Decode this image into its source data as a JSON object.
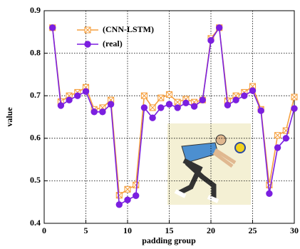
{
  "chart_data": {
    "type": "line",
    "x": [
      1,
      2,
      3,
      4,
      5,
      6,
      7,
      8,
      9,
      10,
      11,
      12,
      13,
      14,
      15,
      16,
      17,
      18,
      19,
      20,
      21,
      22,
      23,
      24,
      25,
      26,
      27,
      28,
      29,
      30
    ],
    "series": [
      {
        "name": "(CNN-LSTM)",
        "color": "#f5a040",
        "marker": "square-x",
        "values": [
          0.86,
          0.686,
          0.7,
          0.708,
          0.72,
          0.668,
          0.672,
          0.69,
          0.466,
          0.48,
          0.49,
          0.7,
          0.672,
          0.695,
          0.703,
          0.685,
          0.692,
          0.685,
          0.69,
          0.835,
          0.86,
          0.688,
          0.7,
          0.708,
          0.722,
          0.668,
          0.49,
          0.607,
          0.618,
          0.697
        ]
      },
      {
        "name": "(real)",
        "color": "#7b1fe0",
        "marker": "circle",
        "values": [
          0.86,
          0.677,
          0.69,
          0.7,
          0.71,
          0.662,
          0.662,
          0.68,
          0.444,
          0.455,
          0.465,
          0.672,
          0.648,
          0.672,
          0.68,
          0.672,
          0.683,
          0.675,
          0.69,
          0.83,
          0.86,
          0.678,
          0.69,
          0.7,
          0.712,
          0.665,
          0.47,
          0.578,
          0.6,
          0.67
        ]
      }
    ],
    "x_label": "padding group",
    "y_label": "value",
    "xlim": [
      0,
      30
    ],
    "xticks": [
      0,
      5,
      10,
      15,
      20,
      25,
      30
    ],
    "ylim": [
      0.4,
      0.9
    ],
    "yticks": [
      0.4,
      0.5,
      0.6,
      0.7,
      0.8,
      0.9
    ],
    "grid": true,
    "legend": "upper left"
  }
}
